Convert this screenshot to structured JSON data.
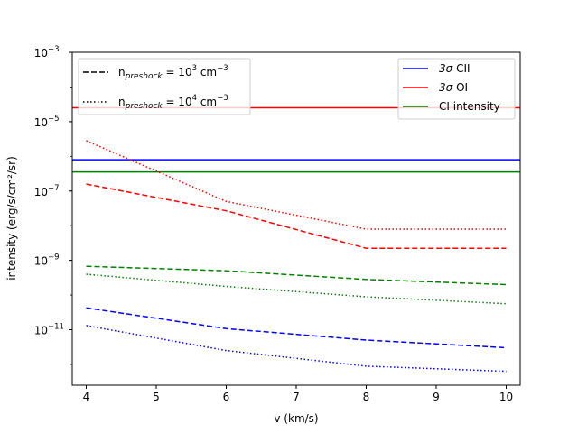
{
  "chart_data": {
    "type": "line",
    "title": "",
    "xlabel": "v (km/s)",
    "ylabel": "intensity (erg/s/cm²/sr)",
    "yscale": "log",
    "xlim": [
      3.8,
      10.2
    ],
    "ylim_log10": [
      -12.6,
      -3
    ],
    "x_ticks": [
      4,
      5,
      6,
      7,
      8,
      9,
      10
    ],
    "y_ticks": [
      {
        "exp": -11,
        "base": "10",
        "sup": "−11"
      },
      {
        "exp": -9,
        "base": "10",
        "sup": "−9"
      },
      {
        "exp": -7,
        "base": "10",
        "sup": "−7"
      },
      {
        "exp": -5,
        "base": "10",
        "sup": "−5"
      },
      {
        "exp": -3,
        "base": "10",
        "sup": "−3"
      }
    ],
    "x": [
      4,
      6,
      8,
      10
    ],
    "series": [
      {
        "name": "CII n=1e3",
        "color": "#0000ff",
        "style": "dashed",
        "log10": [
          -10.37,
          -10.97,
          -11.3,
          -11.52
        ]
      },
      {
        "name": "CII n=1e4",
        "color": "#0000ff",
        "style": "dotted",
        "log10": [
          -10.88,
          -11.6,
          -12.05,
          -12.2
        ]
      },
      {
        "name": "OI n=1e3",
        "color": "#ff0000",
        "style": "dashed",
        "log10": [
          -6.8,
          -7.57,
          -8.65,
          -8.65
        ]
      },
      {
        "name": "OI n=1e4",
        "color": "#ff0000",
        "style": "dotted",
        "log10": [
          -5.55,
          -7.3,
          -8.1,
          -8.1
        ]
      },
      {
        "name": "CI n=1e3",
        "color": "#008000",
        "style": "dashed",
        "log10": [
          -9.17,
          -9.3,
          -9.55,
          -9.7
        ]
      },
      {
        "name": "CI n=1e4",
        "color": "#008000",
        "style": "dotted",
        "log10": [
          -9.4,
          -9.75,
          -10.05,
          -10.25
        ]
      }
    ],
    "horizontal_lines": [
      {
        "label": "3σ CII",
        "color": "#0000ff",
        "log10": -6.1
      },
      {
        "label": "3σ OI",
        "color": "#ff0000",
        "log10": -4.6
      },
      {
        "label": "CI intensity",
        "color": "#008000",
        "log10": -6.45
      }
    ],
    "legend_left": [
      {
        "style": "dashed",
        "prefix": "n",
        "sub": "preshock",
        "mid": " = 10",
        "sup": "3",
        "suffix": " cm",
        "sup2": "−3"
      },
      {
        "style": "dotted",
        "prefix": "n",
        "sub": "preshock",
        "mid": " = 10",
        "sup": "4",
        "suffix": " cm",
        "sup2": "−3"
      }
    ],
    "legend_right": [
      {
        "greek": "3σ",
        "rest": " CII",
        "color": "#0000ff"
      },
      {
        "greek": "3σ",
        "rest": " OI",
        "color": "#ff0000"
      },
      {
        "greek": "",
        "rest": "CI intensity",
        "color": "#008000"
      }
    ]
  }
}
